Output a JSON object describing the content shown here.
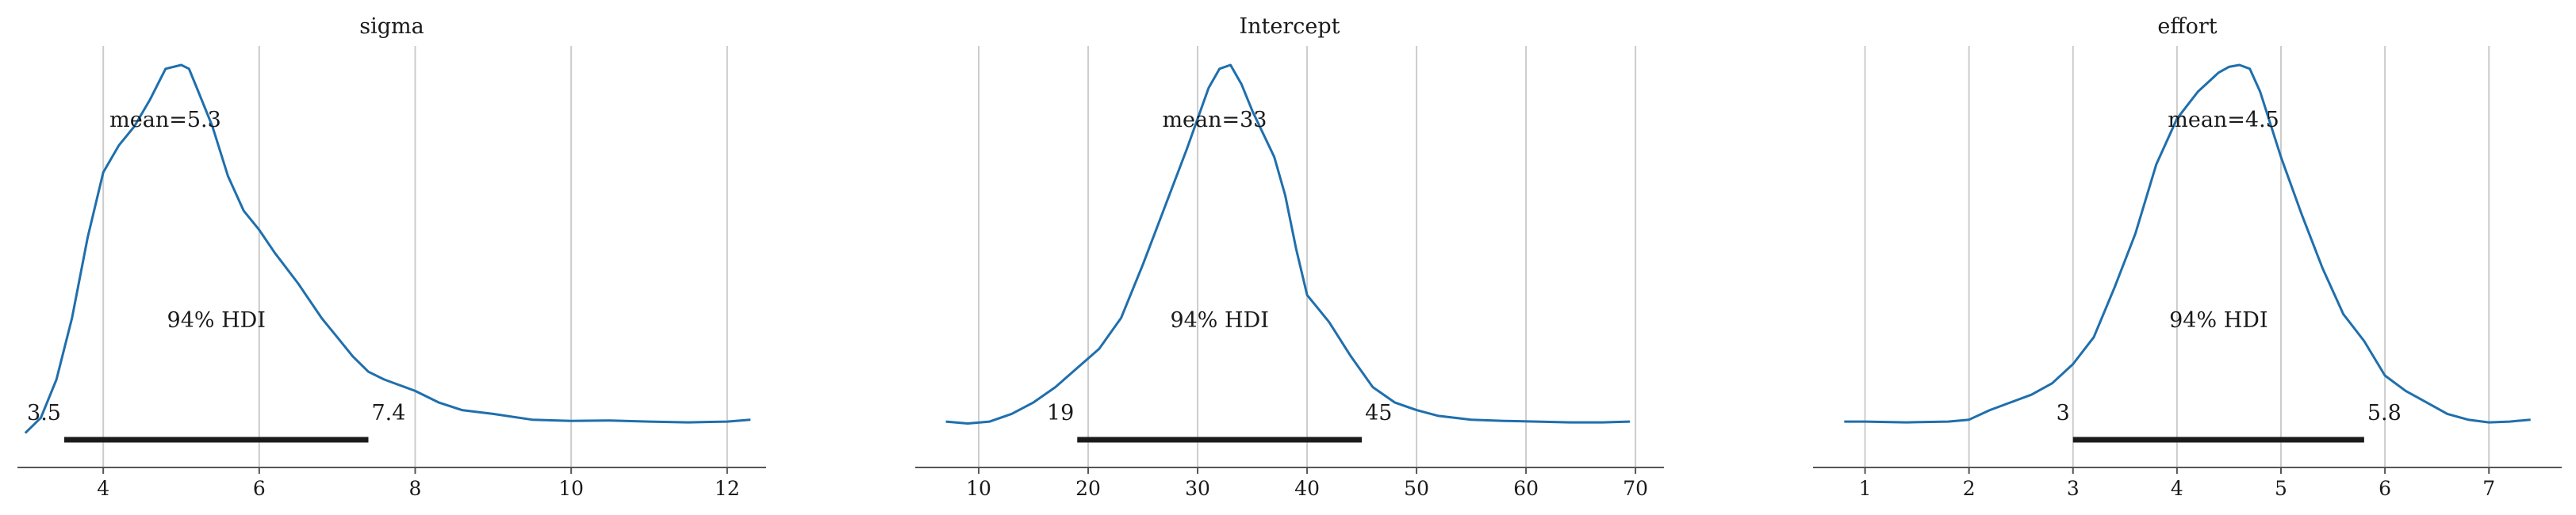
{
  "chart_data": [
    {
      "type": "line",
      "title": "sigma",
      "xlim": [
        2.9,
        12.5
      ],
      "xticks": [
        4,
        6,
        8,
        10,
        12
      ],
      "grid": "vertical",
      "mean_label": "mean=5.3",
      "hdi_label": "94% HDI",
      "hdi": [
        3.5,
        7.4
      ],
      "hdi_low_label": "3.5",
      "hdi_high_label": "7.4",
      "series": [
        {
          "x": [
            3.0,
            3.2,
            3.4,
            3.6,
            3.8,
            4.0,
            4.2,
            4.4,
            4.6,
            4.8,
            5.0,
            5.1,
            5.2,
            5.4,
            5.6,
            5.8,
            6.0,
            6.2,
            6.5,
            6.8,
            7.0,
            7.2,
            7.4,
            7.6,
            7.8,
            8.0,
            8.3,
            8.6,
            9.0,
            9.5,
            10.0,
            10.5,
            11.0,
            11.5,
            12.0,
            12.3
          ],
          "y": [
            0.04,
            0.08,
            0.18,
            0.34,
            0.55,
            0.72,
            0.79,
            0.84,
            0.91,
            0.99,
            1.0,
            0.99,
            0.94,
            0.84,
            0.71,
            0.62,
            0.57,
            0.51,
            0.43,
            0.34,
            0.29,
            0.24,
            0.2,
            0.18,
            0.165,
            0.15,
            0.12,
            0.1,
            0.09,
            0.075,
            0.072,
            0.073,
            0.07,
            0.068,
            0.07,
            0.075
          ]
        }
      ]
    },
    {
      "type": "line",
      "title": "Intercept",
      "xlim": [
        4.2,
        72.6
      ],
      "xticks": [
        10,
        20,
        30,
        40,
        50,
        60,
        70
      ],
      "grid": "vertical",
      "mean_label": "mean=33",
      "hdi_label": "94% HDI",
      "hdi": [
        19,
        45
      ],
      "hdi_low_label": "19",
      "hdi_high_label": "45",
      "series": [
        {
          "x": [
            7,
            9,
            11,
            13,
            15,
            17,
            19,
            21,
            23,
            25,
            27,
            29,
            30,
            31,
            32,
            33,
            34,
            35,
            36,
            37,
            38,
            39,
            40,
            42,
            44,
            46,
            48,
            50,
            52,
            55,
            58,
            61,
            64,
            67,
            69.5
          ],
          "y": [
            0.07,
            0.065,
            0.07,
            0.09,
            0.12,
            0.16,
            0.21,
            0.26,
            0.34,
            0.48,
            0.63,
            0.78,
            0.86,
            0.94,
            0.99,
            1.0,
            0.95,
            0.88,
            0.82,
            0.76,
            0.66,
            0.52,
            0.4,
            0.33,
            0.24,
            0.16,
            0.12,
            0.1,
            0.085,
            0.075,
            0.072,
            0.07,
            0.068,
            0.068,
            0.07
          ]
        }
      ]
    },
    {
      "type": "line",
      "title": "effort",
      "xlim": [
        0.5,
        7.7
      ],
      "xticks": [
        1,
        2,
        3,
        4,
        5,
        6,
        7
      ],
      "grid": "vertical",
      "mean_label": "mean=4.5",
      "hdi_label": "94% HDI",
      "hdi": [
        3.0,
        5.8
      ],
      "hdi_low_label": "3",
      "hdi_high_label": "5.8",
      "series": [
        {
          "x": [
            0.8,
            1.0,
            1.4,
            1.8,
            2.0,
            2.2,
            2.4,
            2.6,
            2.8,
            3.0,
            3.2,
            3.4,
            3.6,
            3.8,
            4.0,
            4.2,
            4.4,
            4.5,
            4.6,
            4.7,
            4.8,
            5.0,
            5.2,
            5.4,
            5.6,
            5.8,
            6.0,
            6.2,
            6.4,
            6.6,
            6.8,
            7.0,
            7.2,
            7.4
          ],
          "y": [
            0.07,
            0.07,
            0.068,
            0.07,
            0.075,
            0.1,
            0.12,
            0.14,
            0.17,
            0.22,
            0.29,
            0.42,
            0.56,
            0.74,
            0.86,
            0.93,
            0.98,
            0.995,
            1.0,
            0.99,
            0.93,
            0.76,
            0.61,
            0.47,
            0.35,
            0.28,
            0.19,
            0.15,
            0.12,
            0.09,
            0.075,
            0.068,
            0.07,
            0.075
          ]
        }
      ]
    }
  ],
  "colors": {
    "line": "#1f6fad",
    "grid": "#cccccc",
    "axis": "#555555",
    "hdi_bar": "#1a1a1a",
    "text": "#1a1a1a"
  }
}
